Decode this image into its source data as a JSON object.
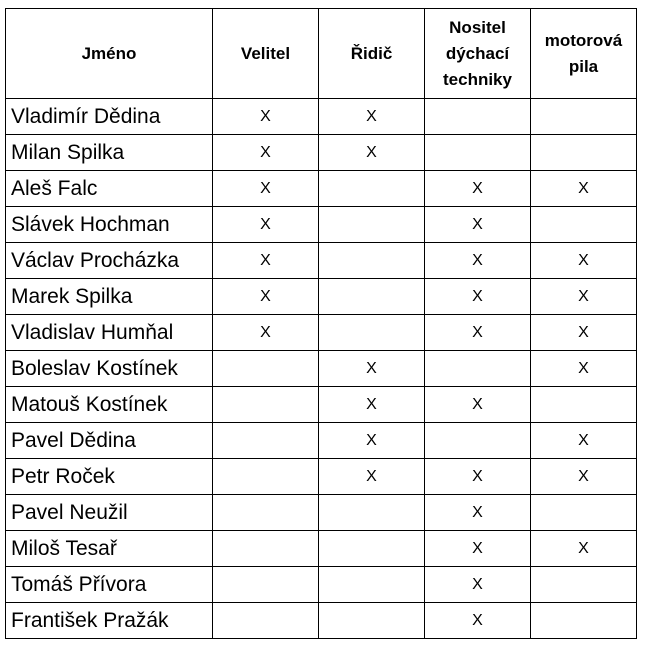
{
  "headers": [
    "Jméno",
    "Velitel",
    "Řidič",
    "Nositel dýchací techniky",
    "motorová pila"
  ],
  "rows": [
    {
      "name": "Vladimír Dědina",
      "marks": [
        "X",
        "X",
        "",
        ""
      ]
    },
    {
      "name": "Milan Spilka",
      "marks": [
        "X",
        "X",
        "",
        ""
      ]
    },
    {
      "name": "Aleš Falc",
      "marks": [
        "X",
        "",
        "X",
        "X"
      ]
    },
    {
      "name": "Slávek Hochman",
      "marks": [
        "X",
        "",
        "X",
        ""
      ]
    },
    {
      "name": "Václav Procházka",
      "marks": [
        "X",
        "",
        "X",
        "X"
      ]
    },
    {
      "name": "Marek Spilka",
      "marks": [
        "X",
        "",
        "X",
        "X"
      ]
    },
    {
      "name": "Vladislav Humňal",
      "marks": [
        "X",
        "",
        "X",
        "X"
      ]
    },
    {
      "name": "Boleslav Kostínek",
      "marks": [
        "",
        "X",
        "",
        "X"
      ]
    },
    {
      "name": "Matouš Kostínek",
      "marks": [
        "",
        "X",
        "X",
        ""
      ]
    },
    {
      "name": "Pavel Dědina",
      "marks": [
        "",
        "X",
        "",
        "X"
      ]
    },
    {
      "name": "Petr Roček",
      "marks": [
        "",
        "X",
        "X",
        "X"
      ]
    },
    {
      "name": "Pavel Neužil",
      "marks": [
        "",
        "",
        "X",
        ""
      ]
    },
    {
      "name": "Miloš Tesař",
      "marks": [
        "",
        "",
        "X",
        "X"
      ]
    },
    {
      "name": "Tomáš Přívora",
      "marks": [
        "",
        "",
        "X",
        ""
      ]
    },
    {
      "name": "František Pražák",
      "marks": [
        "",
        "",
        "X",
        ""
      ]
    }
  ]
}
